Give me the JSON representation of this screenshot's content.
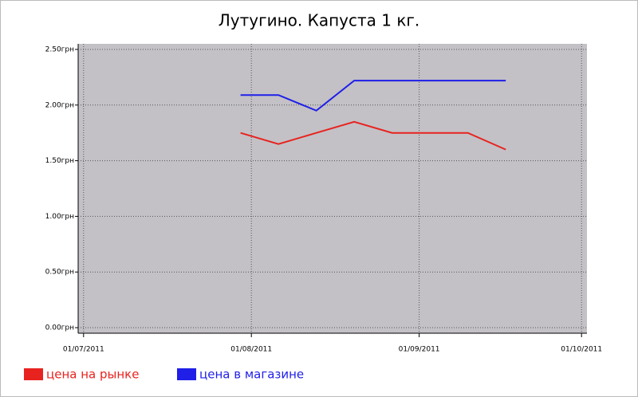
{
  "chart_data": {
    "type": "line",
    "title": "Лутугино. Капуста 1 кг.",
    "x": [
      "2011-07-30",
      "2011-08-06",
      "2011-08-13",
      "2011-08-20",
      "2011-08-27",
      "2011-09-03",
      "2011-09-10",
      "2011-09-17"
    ],
    "series": [
      {
        "name": "цена на рынке",
        "color": "#e8231f",
        "values": [
          1.75,
          1.65,
          1.75,
          1.85,
          1.75,
          1.75,
          1.75,
          1.6
        ]
      },
      {
        "name": "цена в магазине",
        "color": "#1f1fe8",
        "values": [
          2.09,
          2.09,
          1.95,
          2.22,
          2.22,
          2.22,
          2.22,
          2.22
        ]
      }
    ],
    "xlim": [
      "2011-06-30",
      "2011-10-02"
    ],
    "xticks": [
      {
        "value": "2011-07-01",
        "label": "01/07/2011"
      },
      {
        "value": "2011-08-01",
        "label": "01/08/2011"
      },
      {
        "value": "2011-09-01",
        "label": "01/09/2011"
      },
      {
        "value": "2011-10-01",
        "label": "01/10/2011"
      }
    ],
    "ylim": [
      -0.05,
      2.55
    ],
    "yticks": [
      {
        "value": 0,
        "label": "0.00грн"
      },
      {
        "value": 0.5,
        "label": "0.50грн"
      },
      {
        "value": 1,
        "label": "1.00грн"
      },
      {
        "value": 1.5,
        "label": "1.50грн"
      },
      {
        "value": 2,
        "label": "2.00грн"
      },
      {
        "value": 2.5,
        "label": "2.50грн"
      }
    ],
    "grid": true,
    "legend": "bottom-left"
  }
}
